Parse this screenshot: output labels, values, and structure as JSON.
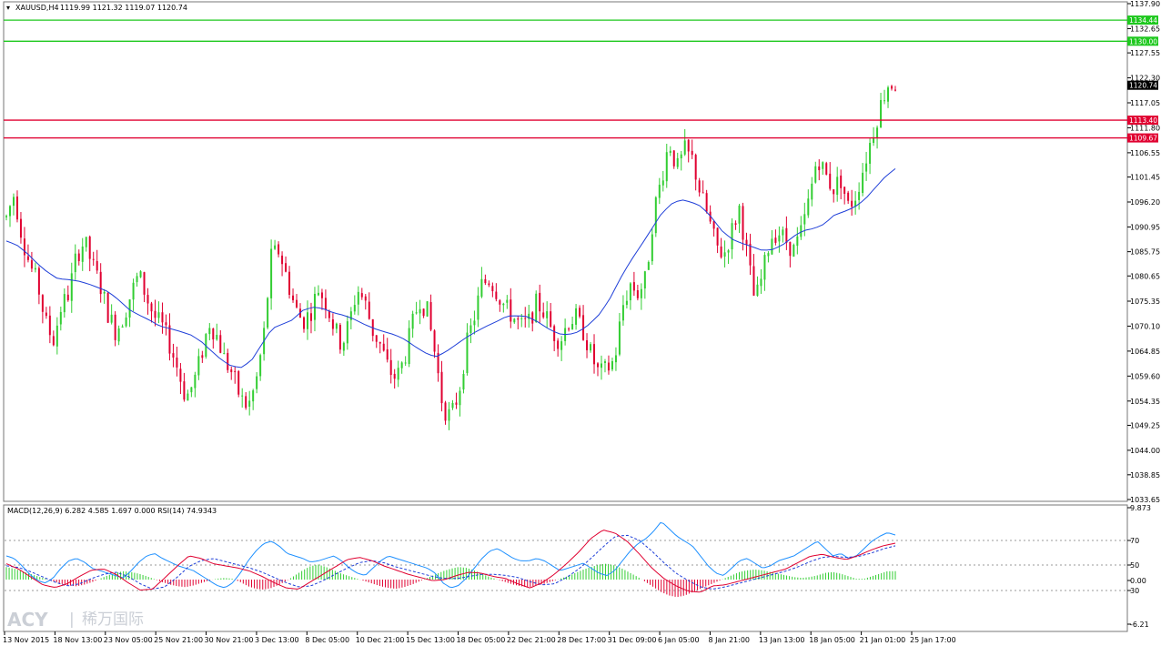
{
  "window": {
    "symbol_label": "XAUUSD,H4",
    "ohlc_label": "1119.99 1121.32 1119.07 1120.74",
    "indicator_label": "MACD(12,26,9) 6.282 4.585 1.697 0.000  RSI(14) 74.9343"
  },
  "logo": {
    "text": "ACY",
    "separator": "|",
    "cn": "稀万国际"
  },
  "colors": {
    "bull": "#32cd32",
    "bear": "#e00030",
    "ma": "#1f3fd8",
    "support": "#e00030",
    "resistance": "#1ec81e",
    "macd_hist_pos": "#32cd32",
    "macd_hist_neg": "#e00030",
    "macd_line": "#e00030",
    "signal_line": "#1f3fd8",
    "rsi_line": "#1e90ff"
  },
  "chart_data": [
    {
      "type": "candlestick",
      "symbol": "XAUUSD",
      "timeframe": "H4",
      "ylim": [
        1033.65,
        1137.9
      ],
      "price_ticks": [
        "1137.90",
        "1132.65",
        "1127.55",
        "1122.30",
        "1117.05",
        "1111.80",
        "1106.55",
        "1101.45",
        "1096.20",
        "1090.95",
        "1085.75",
        "1080.65",
        "1075.35",
        "1070.10",
        "1064.85",
        "1059.60",
        "1054.35",
        "1049.25",
        "1044.00",
        "1038.85",
        "1033.65"
      ],
      "time_labels": [
        "13 Nov 2015",
        "18 Nov 13:00",
        "23 Nov 05:00",
        "25 Nov 21:00",
        "30 Nov 21:00",
        "3 Dec 13:00",
        "8 Dec 05:00",
        "10 Dec 21:00",
        "15 Dec 13:00",
        "18 Dec 05:00",
        "22 Dec 21:00",
        "28 Dec 17:00",
        "31 Dec 09:00",
        "6 Jan 05:00",
        "8 Jan 21:00",
        "13 Jan 13:00",
        "18 Jan 05:00",
        "21 Jan 01:00",
        "25 Jan 17:00"
      ],
      "close_path": [
        1093,
        1098,
        1089,
        1083,
        1079,
        1071,
        1067,
        1074,
        1077,
        1085,
        1088,
        1083,
        1079,
        1073,
        1069,
        1072,
        1077,
        1081,
        1076,
        1072,
        1070,
        1066,
        1061,
        1055,
        1058,
        1064,
        1071,
        1068,
        1063,
        1060,
        1055,
        1053,
        1058,
        1068,
        1085,
        1086,
        1080,
        1074,
        1071,
        1073,
        1078,
        1075,
        1070,
        1066,
        1071,
        1078,
        1075,
        1069,
        1066,
        1061,
        1059,
        1063,
        1070,
        1076,
        1073,
        1064,
        1053,
        1051,
        1056,
        1066,
        1072,
        1079,
        1080,
        1077,
        1074,
        1072,
        1070,
        1071,
        1075,
        1073,
        1069,
        1067,
        1071,
        1072,
        1069,
        1064,
        1060,
        1061,
        1063,
        1074,
        1079,
        1077,
        1080,
        1094,
        1101,
        1109,
        1103,
        1107,
        1105,
        1098,
        1093,
        1087,
        1085,
        1090,
        1095,
        1085,
        1075,
        1081,
        1089,
        1090,
        1088,
        1086,
        1090,
        1097,
        1106,
        1102,
        1099,
        1101,
        1095,
        1098,
        1104,
        1110,
        1116,
        1121,
        1121
      ],
      "ma_path": [
        1088,
        1087.2,
        1085.5,
        1083.3,
        1081.5,
        1080.1,
        1079.9,
        1079.6,
        1079,
        1078.2,
        1077.3,
        1075.6,
        1073.6,
        1072.4,
        1071.4,
        1070.1,
        1069.6,
        1069,
        1068.3,
        1067,
        1065,
        1063.1,
        1061.7,
        1061.4,
        1062.9,
        1066.3,
        1069.6,
        1070.5,
        1071.4,
        1073.4,
        1074.1,
        1073.8,
        1072.9,
        1072.4,
        1071.6,
        1070.5,
        1069.6,
        1068.9,
        1068.3,
        1067.3,
        1065.8,
        1064.5,
        1063.6,
        1064.7,
        1066.2,
        1067.7,
        1069,
        1070.1,
        1071.1,
        1072.2,
        1072.3,
        1072.1,
        1071,
        1069.6,
        1068.5,
        1068.3,
        1068.9,
        1070.4,
        1072.5,
        1075.6,
        1079.8,
        1083.5,
        1086.7,
        1090,
        1093.4,
        1095.7,
        1096.7,
        1096.2,
        1095.3,
        1093,
        1090.2,
        1088.4,
        1087.5,
        1086.8,
        1086,
        1086.2,
        1087.2,
        1088.9,
        1090.2,
        1090.6,
        1091.5,
        1093.4,
        1094.2,
        1095.1,
        1096.7,
        1099.1,
        1101.5,
        1103.2
      ],
      "levels": [
        {
          "value": "1134.44",
          "color": "resistance"
        },
        {
          "value": "1130.00",
          "color": "resistance"
        },
        {
          "value": "1113.40",
          "color": "support"
        },
        {
          "value": "1109.67",
          "color": "support"
        }
      ],
      "current": "1120.74",
      "grid": false
    },
    {
      "type": "indicator",
      "name": "MACD(12,26,9) / RSI(14)",
      "axis_labels": [
        "9.873",
        "70",
        "50",
        "0.00",
        "30",
        "-6.21"
      ],
      "ylim": [
        -6.21,
        9.873
      ],
      "histogram": [
        3,
        2.6,
        2,
        1.4,
        0.8,
        0.2,
        -0.4,
        -1,
        -1.4,
        -1.6,
        -1.2,
        -0.6,
        0.2,
        1,
        1.6,
        2,
        1.8,
        1.4,
        0.8,
        0.1,
        -0.6,
        -1.2,
        -1.6,
        -1.8,
        -1.4,
        -0.8,
        -0.2,
        0.2,
        0.4,
        0.2,
        -0.6,
        -1.6,
        -2.2,
        -2.4,
        -2,
        -1.2,
        -0.2,
        1,
        2.2,
        3.2,
        3.6,
        3,
        2.2,
        1.4,
        0.8,
        0.2,
        -0.4,
        -1,
        -1.6,
        -2,
        -2.2,
        -1.8,
        -1.2,
        -0.4,
        0.4,
        1.2,
        2,
        2.6,
        3,
        2.8,
        2.2,
        1.4,
        0.6,
        0,
        -0.6,
        -1.2,
        -1.6,
        -1.8,
        -1.4,
        -1,
        -0.4,
        0.2,
        0.8,
        1.6,
        2.4,
        3,
        3.6,
        3.8,
        3.4,
        2.6,
        1.6,
        0.6,
        -0.6,
        -1.8,
        -3,
        -3.8,
        -4.2,
        -3.8,
        -3,
        -2.2,
        -1.4,
        -0.6,
        0.2,
        1,
        1.8,
        2.2,
        2.4,
        2.2,
        1.8,
        1.4,
        1,
        0.6,
        0.4,
        0.6,
        1,
        1.6,
        1.8,
        1.4,
        0.8,
        0.2,
        0.2,
        0.8,
        1.4,
        2,
        2
      ],
      "macd_line": [
        3,
        2,
        0.5,
        -1,
        -1.5,
        -0.8,
        0.6,
        1.8,
        2,
        1,
        -0.6,
        -2,
        -1.8,
        0.3,
        2.5,
        4.5,
        4,
        3,
        2.6,
        2.2,
        1.6,
        0.6,
        -0.6,
        -1.6,
        -1.8,
        -0.4,
        1,
        2.4,
        3.8,
        4.2,
        3.6,
        2.6,
        1.8,
        1,
        0.4,
        -0.2,
        0,
        0.8,
        1.4,
        1.2,
        0.6,
        0.2,
        -0.8,
        -1.6,
        -0.6,
        1,
        3,
        5.2,
        7.8,
        9.4,
        8.8,
        7.2,
        4.8,
        2.2,
        0.2,
        -1.2,
        -2.2,
        -2.4,
        -1.2,
        -1,
        -0.4,
        0.2,
        0.8,
        1.4,
        2,
        3.2,
        4.4,
        4.8,
        4.2,
        3.8,
        4.6,
        5.6,
        6.4,
        6.9
      ],
      "signal_line": [
        2.6,
        2.3,
        1.5,
        0.5,
        -0.5,
        -1.2,
        -0.8,
        0.2,
        1,
        1.4,
        0.6,
        -0.8,
        -1.8,
        -1.4,
        0.4,
        2.5,
        3.6,
        4,
        3.4,
        2.8,
        2.2,
        1.4,
        0.4,
        -0.6,
        -1.4,
        -1.2,
        -0.2,
        1,
        2.2,
        3.2,
        3.6,
        3.2,
        2.4,
        1.8,
        1.2,
        0.6,
        0.2,
        0.2,
        0.6,
        1,
        1,
        0.8,
        0.4,
        -0.4,
        -1,
        -0.8,
        0.4,
        2,
        4,
        6.2,
        8.2,
        8.4,
        7.4,
        5.4,
        3.2,
        1.2,
        -0.2,
        -1.4,
        -1.8,
        -1.4,
        -0.8,
        -0.2,
        0.4,
        1,
        1.6,
        2.4,
        3.4,
        4.2,
        4.4,
        4.2,
        4.4,
        5,
        5.8,
        6.4
      ],
      "rsi_line": [
        60,
        58,
        52,
        45,
        40,
        38,
        42,
        50,
        56,
        58,
        55,
        50,
        48,
        46,
        44,
        42,
        48,
        55,
        60,
        62,
        58,
        55,
        52,
        50,
        48,
        44,
        40,
        36,
        34,
        38,
        46,
        56,
        64,
        70,
        72,
        68,
        62,
        60,
        58,
        55,
        56,
        58,
        60,
        56,
        50,
        46,
        44,
        50,
        56,
        60,
        58,
        56,
        54,
        52,
        50,
        46,
        38,
        34,
        36,
        42,
        50,
        58,
        64,
        66,
        62,
        58,
        56,
        56,
        58,
        56,
        52,
        48,
        50,
        52,
        54,
        50,
        46,
        44,
        48,
        56,
        64,
        70,
        74,
        80,
        88,
        82,
        76,
        72,
        68,
        60,
        52,
        46,
        44,
        50,
        56,
        58,
        54,
        50,
        52,
        56,
        58,
        60,
        64,
        68,
        72,
        66,
        60,
        62,
        58,
        60,
        66,
        72,
        76,
        79,
        77
      ]
    }
  ]
}
